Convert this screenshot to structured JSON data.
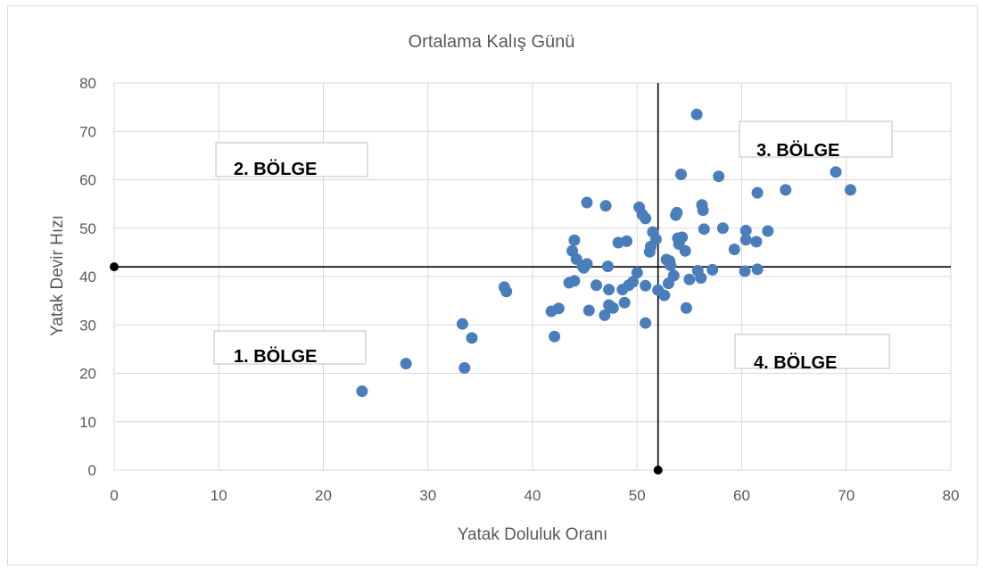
{
  "chart_data": {
    "type": "scatter",
    "title": "Ortalama Kalış Günü",
    "xlabel": "Yatak Doluluk Oranı",
    "ylabel": "Yatak Devir Hızı",
    "xlim": [
      0,
      80
    ],
    "ylim": [
      0,
      80
    ],
    "xticks": [
      "0",
      "10",
      "20",
      "30",
      "40",
      "50",
      "60",
      "70",
      "80"
    ],
    "yticks": [
      "0",
      "10",
      "20",
      "30",
      "40",
      "50",
      "60",
      "70",
      "80"
    ],
    "grid": true,
    "point_color": "#4a7ebb",
    "reference_lines": {
      "x": 52,
      "y": 42,
      "color": "#000000",
      "marker_color": "#000000"
    },
    "regions": [
      {
        "label": "1. BÖLGE",
        "quadrant": "bottom-left"
      },
      {
        "label": "2. BÖLGE",
        "quadrant": "top-left"
      },
      {
        "label": "3. BÖLGE",
        "quadrant": "top-right"
      },
      {
        "label": "4. BÖLGE",
        "quadrant": "bottom-right"
      }
    ],
    "points": [
      [
        23.7,
        16.3
      ],
      [
        27.9,
        22
      ],
      [
        33.3,
        30.2
      ],
      [
        34.2,
        27.3
      ],
      [
        33.5,
        21.1
      ],
      [
        37.3,
        37.8
      ],
      [
        37.5,
        36.9
      ],
      [
        41.8,
        32.8
      ],
      [
        42.5,
        33.4
      ],
      [
        42.1,
        27.6
      ],
      [
        43.5,
        38.7
      ],
      [
        44,
        39.1
      ],
      [
        44,
        47.5
      ],
      [
        43.8,
        45.3
      ],
      [
        44.2,
        43.6
      ],
      [
        44.8,
        42.1
      ],
      [
        45.2,
        42.6
      ],
      [
        44.9,
        41.8
      ],
      [
        45.2,
        55.3
      ],
      [
        45.4,
        33
      ],
      [
        46.1,
        38.2
      ],
      [
        46.9,
        32
      ],
      [
        47,
        54.6
      ],
      [
        47.3,
        37.3
      ],
      [
        47.3,
        34.1
      ],
      [
        47.2,
        42.1
      ],
      [
        47.7,
        33.5
      ],
      [
        48.2,
        47
      ],
      [
        48.6,
        37.3
      ],
      [
        48.8,
        34.6
      ],
      [
        49,
        47.3
      ],
      [
        49.2,
        38.2
      ],
      [
        49.6,
        38.9
      ],
      [
        50,
        40.8
      ],
      [
        50.2,
        54.3
      ],
      [
        50.5,
        52.8
      ],
      [
        50.8,
        52
      ],
      [
        50.8,
        30.4
      ],
      [
        50.8,
        38.1
      ],
      [
        51.2,
        45.1
      ],
      [
        51.3,
        46.2
      ],
      [
        51.8,
        47.7
      ],
      [
        51.5,
        49.2
      ],
      [
        52,
        37.2
      ],
      [
        52.6,
        36.1
      ],
      [
        52.8,
        43.5
      ],
      [
        53,
        38.6
      ],
      [
        53.1,
        43.2
      ],
      [
        53.2,
        42.3
      ],
      [
        53.5,
        40.2
      ],
      [
        53.7,
        52.7
      ],
      [
        53.8,
        53.2
      ],
      [
        53.9,
        47.9
      ],
      [
        54,
        46.7
      ],
      [
        54.2,
        61.1
      ],
      [
        54.3,
        48.1
      ],
      [
        54.6,
        45.3
      ],
      [
        54.7,
        33.5
      ],
      [
        55,
        39.4
      ],
      [
        55.7,
        73.5
      ],
      [
        55.8,
        41.2
      ],
      [
        56.1,
        39.7
      ],
      [
        56.2,
        54.8
      ],
      [
        56.3,
        53.7
      ],
      [
        56.4,
        49.8
      ],
      [
        57.2,
        41.4
      ],
      [
        57.8,
        60.7
      ],
      [
        58.2,
        50
      ],
      [
        59.3,
        45.6
      ],
      [
        60.3,
        41.1
      ],
      [
        60.4,
        47.6
      ],
      [
        60.4,
        49.5
      ],
      [
        61.4,
        47.2
      ],
      [
        61.5,
        57.3
      ],
      [
        61.5,
        41.5
      ],
      [
        62.5,
        49.4
      ],
      [
        64.2,
        57.9
      ],
      [
        69,
        61.6
      ],
      [
        70.4,
        57.9
      ]
    ]
  }
}
